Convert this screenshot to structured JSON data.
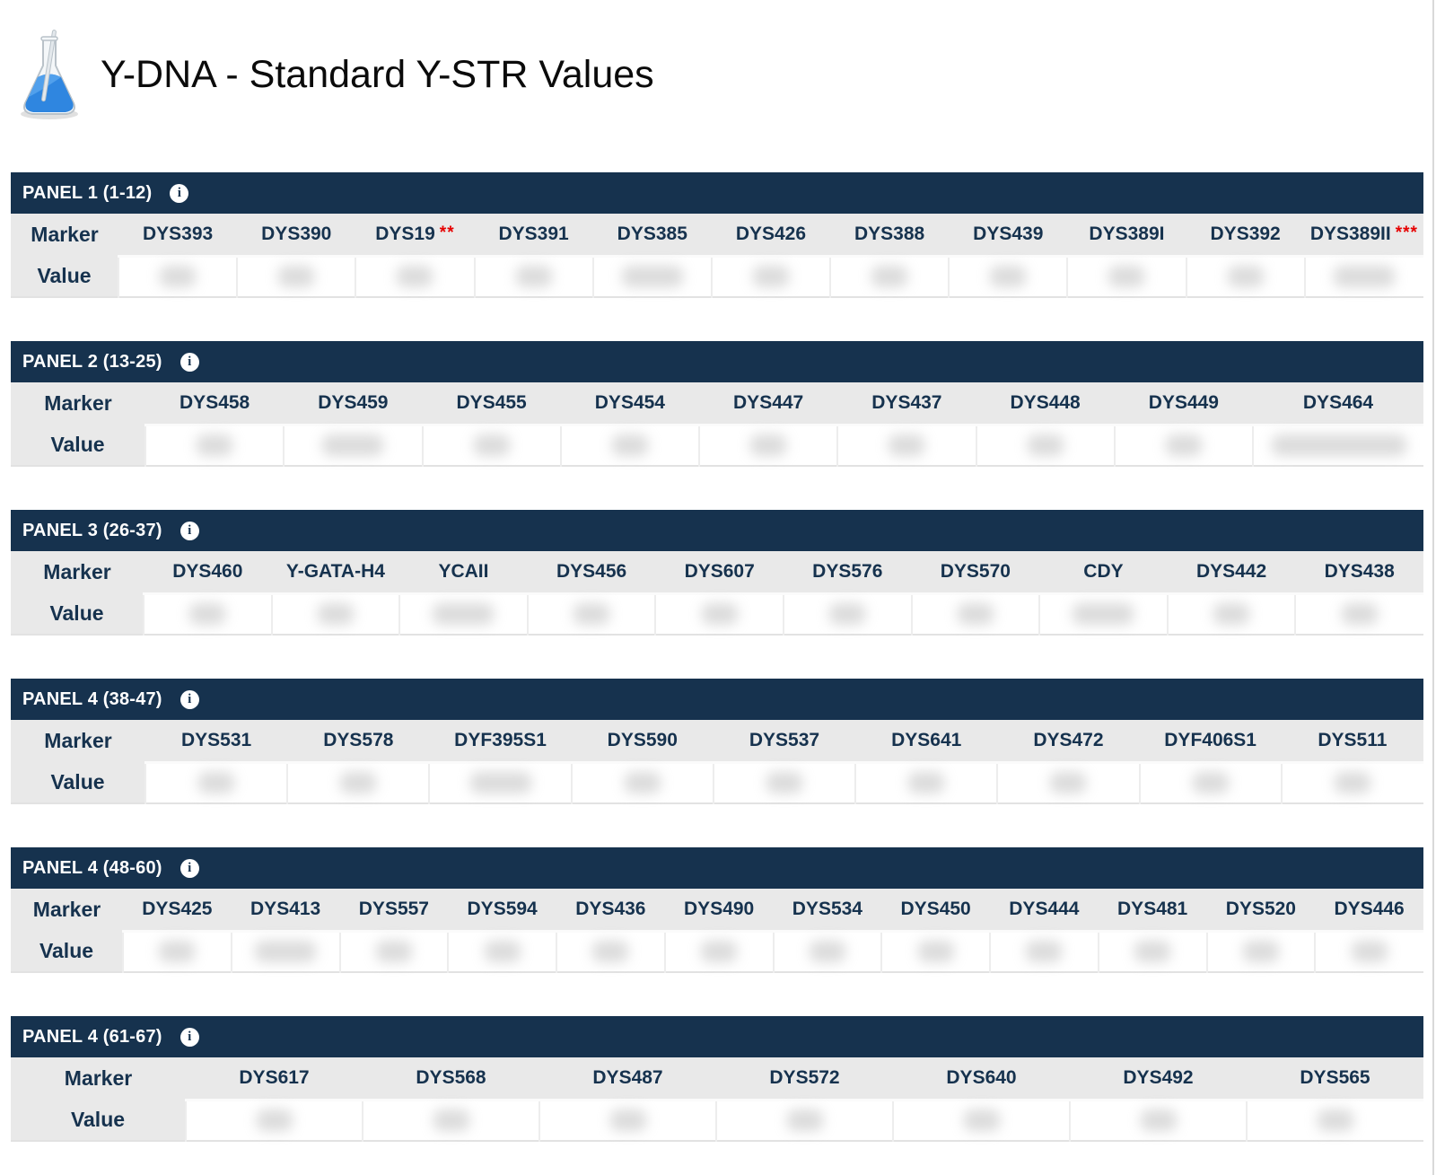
{
  "page": {
    "title": "Y-DNA - Standard Y-STR Values",
    "title_icon": "flask-icon"
  },
  "row_labels": {
    "marker": "Marker",
    "value": "Value"
  },
  "values_redacted": true,
  "colors": {
    "panel_header_bg": "#16324e",
    "row_bg": "#e9e9e9",
    "marker_text": "#16324e",
    "flag_red": "#e60000"
  },
  "panels": [
    {
      "label": "PANEL 1 (1-12)",
      "markers": [
        {
          "name": "DYS393"
        },
        {
          "name": "DYS390"
        },
        {
          "name": "DYS19",
          "flag": "**"
        },
        {
          "name": "DYS391"
        },
        {
          "name": "DYS385",
          "blur": "m"
        },
        {
          "name": "DYS426"
        },
        {
          "name": "DYS388"
        },
        {
          "name": "DYS439"
        },
        {
          "name": "DYS389I"
        },
        {
          "name": "DYS392"
        },
        {
          "name": "DYS389II",
          "flag": "***",
          "blur": "m"
        }
      ]
    },
    {
      "label": "PANEL 2 (13-25)",
      "markers": [
        {
          "name": "DYS458"
        },
        {
          "name": "DYS459",
          "blur": "m"
        },
        {
          "name": "DYS455"
        },
        {
          "name": "DYS454"
        },
        {
          "name": "DYS447"
        },
        {
          "name": "DYS437"
        },
        {
          "name": "DYS448"
        },
        {
          "name": "DYS449"
        },
        {
          "name": "DYS464",
          "blur": "l",
          "wide": true
        }
      ]
    },
    {
      "label": "PANEL 3 (26-37)",
      "markers": [
        {
          "name": "DYS460"
        },
        {
          "name": "Y-GATA-H4"
        },
        {
          "name": "YCAII",
          "blur": "m"
        },
        {
          "name": "DYS456"
        },
        {
          "name": "DYS607"
        },
        {
          "name": "DYS576"
        },
        {
          "name": "DYS570"
        },
        {
          "name": "CDY",
          "blur": "m"
        },
        {
          "name": "DYS442"
        },
        {
          "name": "DYS438"
        }
      ]
    },
    {
      "label": "PANEL 4 (38-47)",
      "markers": [
        {
          "name": "DYS531"
        },
        {
          "name": "DYS578"
        },
        {
          "name": "DYF395S1",
          "blur": "m"
        },
        {
          "name": "DYS590"
        },
        {
          "name": "DYS537"
        },
        {
          "name": "DYS641"
        },
        {
          "name": "DYS472"
        },
        {
          "name": "DYF406S1"
        },
        {
          "name": "DYS511"
        }
      ]
    },
    {
      "label": "PANEL 4 (48-60)",
      "markers": [
        {
          "name": "DYS425"
        },
        {
          "name": "DYS413",
          "blur": "m"
        },
        {
          "name": "DYS557"
        },
        {
          "name": "DYS594"
        },
        {
          "name": "DYS436"
        },
        {
          "name": "DYS490"
        },
        {
          "name": "DYS534"
        },
        {
          "name": "DYS450"
        },
        {
          "name": "DYS444"
        },
        {
          "name": "DYS481"
        },
        {
          "name": "DYS520"
        },
        {
          "name": "DYS446"
        }
      ]
    },
    {
      "label": "PANEL 4 (61-67)",
      "markers": [
        {
          "name": "DYS617"
        },
        {
          "name": "DYS568"
        },
        {
          "name": "DYS487"
        },
        {
          "name": "DYS572"
        },
        {
          "name": "DYS640"
        },
        {
          "name": "DYS492"
        },
        {
          "name": "DYS565"
        }
      ]
    }
  ]
}
